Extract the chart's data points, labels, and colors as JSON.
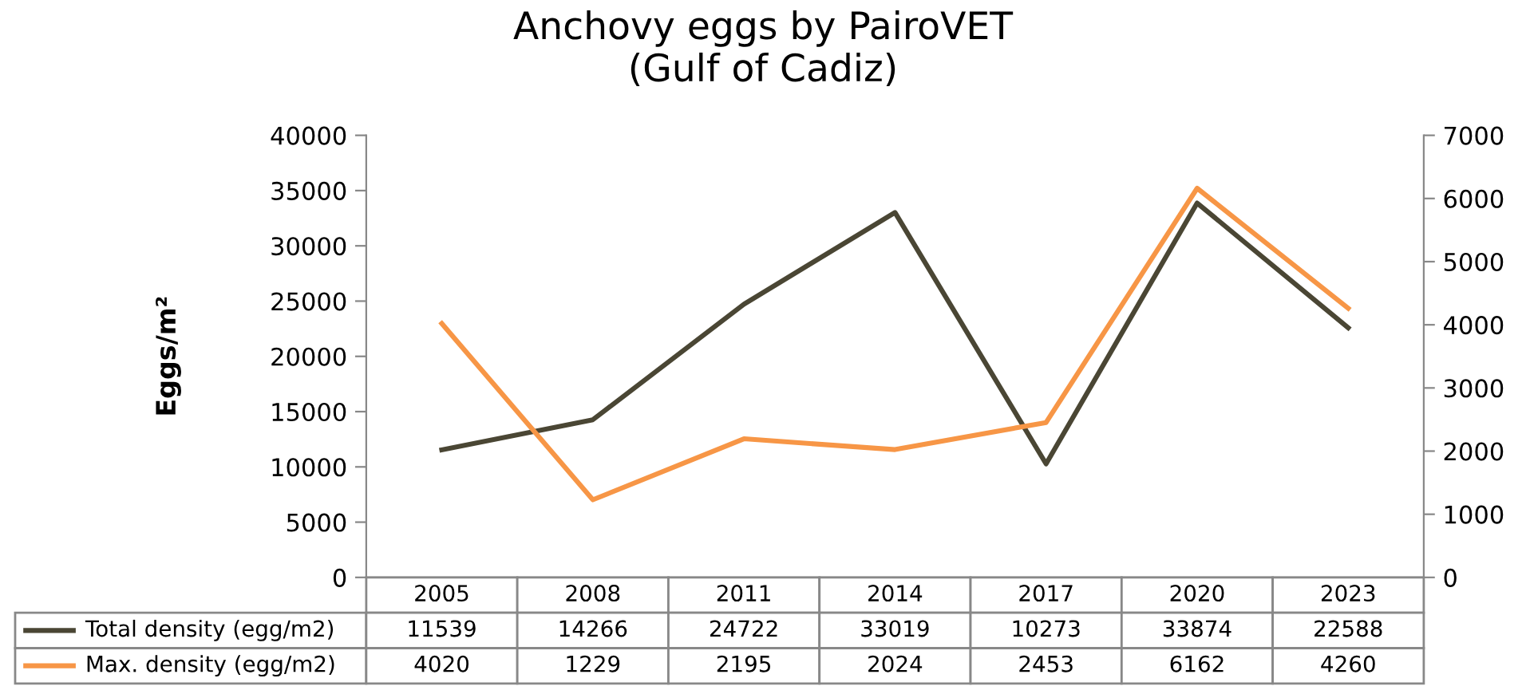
{
  "chart_data": {
    "type": "line",
    "title": "Anchovy eggs by PairoVET\n(Gulf of Cadiz)",
    "ylabel": "Eggs/m²",
    "categories": [
      "2005",
      "2008",
      "2011",
      "2014",
      "2017",
      "2020",
      "2023"
    ],
    "series": [
      {
        "name": "Total density (egg/m2)",
        "color": "#4a4634",
        "values": [
          11539,
          14266,
          24722,
          33019,
          10273,
          33874,
          22588
        ]
      },
      {
        "name": "Max. density (egg/m2)",
        "color": "#f79646",
        "axis": "y2",
        "values": [
          4020,
          1229,
          2195,
          2024,
          2453,
          6162,
          4260
        ]
      }
    ],
    "ylim": [
      0,
      40000
    ],
    "yticks": [
      0,
      5000,
      10000,
      15000,
      20000,
      25000,
      30000,
      35000,
      40000
    ],
    "y2lim": [
      0,
      7000
    ],
    "y2ticks": [
      0,
      1000,
      2000,
      3000,
      4000,
      5000,
      6000,
      7000
    ],
    "data_labels": true,
    "legend": "bottom",
    "grid": false,
    "marker": "none",
    "line_style": "solid"
  }
}
